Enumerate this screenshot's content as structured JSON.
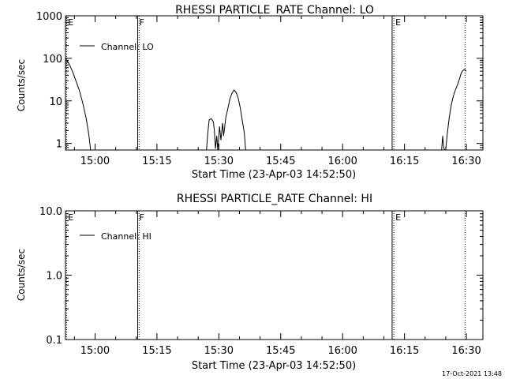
{
  "chart_data": [
    {
      "type": "line",
      "title": "RHESSI PARTICLE_RATE Channel: LO",
      "xlabel": "Start Time (23-Apr-03 14:52:50)",
      "ylabel": "Counts/sec",
      "yscale": "log",
      "xlim": [
        "14:52:50",
        "16:34:00"
      ],
      "ylim": [
        0.7,
        1000
      ],
      "yticks": [
        {
          "v": 1,
          "label": "1"
        },
        {
          "v": 10,
          "label": "10"
        },
        {
          "v": 100,
          "label": "100"
        },
        {
          "v": 1000,
          "label": "1000"
        }
      ],
      "xticks": [
        {
          "t": "15:00",
          "label": "15:00"
        },
        {
          "t": "15:15",
          "label": "15:15"
        },
        {
          "t": "15:30",
          "label": "15:30"
        },
        {
          "t": "15:45",
          "label": "15:45"
        },
        {
          "t": "16:00",
          "label": "16:00"
        },
        {
          "t": "16:15",
          "label": "16:15"
        },
        {
          "t": "16:30",
          "label": "16:30"
        }
      ],
      "legend": {
        "label": "Channel: LO",
        "position": "top-left"
      },
      "markers": [
        {
          "label": "E",
          "t": "14:53:05",
          "style": "dotted"
        },
        {
          "label": "F",
          "t": "15:10:20",
          "style": "solid"
        },
        {
          "label": "",
          "t": "15:10:40",
          "style": "dotted"
        },
        {
          "label": "",
          "t": "16:12:00",
          "style": "solid"
        },
        {
          "label": "E",
          "t": "16:12:25",
          "style": "dotted"
        },
        {
          "label": "",
          "t": "16:29:40",
          "style": "dotted"
        }
      ],
      "series": [
        {
          "segments": [
            {
              "x": [
                "14:52:50",
                "14:53:40",
                "14:54:30",
                "14:55:20",
                "14:56:10",
                "14:57:00",
                "14:57:50",
                "14:58:30",
                "14:58:55"
              ],
              "y": [
                100,
                75,
                50,
                30,
                18,
                9,
                4,
                1.6,
                0.7
              ]
            },
            {
              "x": [
                "15:27:00",
                "15:27:20",
                "15:27:40",
                "15:28:10",
                "15:28:40",
                "15:28:55",
                "15:29:10",
                "15:29:30",
                "15:29:45"
              ],
              "y": [
                0.7,
                1.8,
                3.6,
                3.8,
                3.2,
                2.0,
                0.75,
                1.5,
                0.7
              ]
            },
            {
              "x": [
                "15:29:45",
                "15:30:10",
                "15:30:30",
                "15:30:55",
                "15:31:10",
                "15:31:40",
                "15:32:10",
                "15:32:40",
                "15:33:10",
                "15:33:40",
                "15:34:10",
                "15:34:40",
                "15:35:10",
                "15:35:40",
                "15:36:10",
                "15:36:30"
              ],
              "y": [
                0.7,
                2.5,
                1.2,
                3.0,
                1.5,
                4.0,
                6.5,
                11,
                15,
                18,
                16,
                12,
                7,
                3.5,
                1.8,
                0.7
              ]
            },
            {
              "x": [
                "16:24:00",
                "16:24:15",
                "16:24:30",
                "16:24:45",
                "16:25:00"
              ],
              "y": [
                0.7,
                1.5,
                0.8,
                0.7,
                0.7
              ]
            },
            {
              "x": [
                "16:25:00",
                "16:25:20",
                "16:25:50",
                "16:26:20",
                "16:26:50",
                "16:27:20",
                "16:27:50",
                "16:28:20",
                "16:28:45",
                "16:29:10",
                "16:29:35",
                "16:29:55"
              ],
              "y": [
                0.7,
                1.6,
                4.0,
                8,
                13,
                18,
                24,
                33,
                45,
                52,
                55,
                50
              ]
            }
          ]
        }
      ]
    },
    {
      "type": "line",
      "title": "RHESSI PARTICLE_RATE Channel: HI",
      "xlabel": "Start Time (23-Apr-03 14:52:50)",
      "ylabel": "Counts/sec",
      "yscale": "log",
      "xlim": [
        "14:52:50",
        "16:34:00"
      ],
      "ylim": [
        0.1,
        10
      ],
      "yticks": [
        {
          "v": 0.1,
          "label": "0.1"
        },
        {
          "v": 1,
          "label": "1.0"
        },
        {
          "v": 10,
          "label": "10.0"
        }
      ],
      "xticks": [
        {
          "t": "15:00",
          "label": "15:00"
        },
        {
          "t": "15:15",
          "label": "15:15"
        },
        {
          "t": "15:30",
          "label": "15:30"
        },
        {
          "t": "15:45",
          "label": "15:45"
        },
        {
          "t": "16:00",
          "label": "16:00"
        },
        {
          "t": "16:15",
          "label": "16:15"
        },
        {
          "t": "16:30",
          "label": "16:30"
        }
      ],
      "legend": {
        "label": "Channel: HI",
        "position": "top-left"
      },
      "markers": [
        {
          "label": "E",
          "t": "14:53:05",
          "style": "dotted"
        },
        {
          "label": "F",
          "t": "15:10:20",
          "style": "solid"
        },
        {
          "label": "",
          "t": "15:10:40",
          "style": "dotted"
        },
        {
          "label": "",
          "t": "16:12:00",
          "style": "solid"
        },
        {
          "label": "E",
          "t": "16:12:25",
          "style": "dotted"
        },
        {
          "label": "",
          "t": "16:29:40",
          "style": "dotted"
        }
      ],
      "series": [
        {
          "segments": []
        }
      ]
    }
  ],
  "timestamp": "17-Oct-2021 13:48"
}
